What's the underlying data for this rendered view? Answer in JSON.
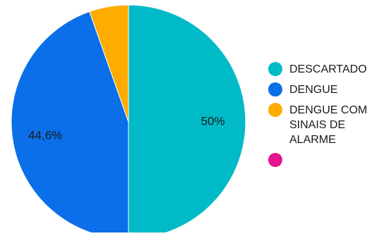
{
  "chart_data": {
    "type": "pie",
    "slices": [
      {
        "label": "DESCARTADO",
        "value": 50,
        "display": "50%",
        "color": "#00bac8"
      },
      {
        "label": "DENGUE",
        "value": 44.6,
        "display": "44,6%",
        "color": "#0a6fe8"
      },
      {
        "label": "DENGUE COM SINAIS DE ALARME",
        "value": 5.4,
        "display": "",
        "color": "#ffab00"
      },
      {
        "label": "",
        "value": 0,
        "display": "",
        "color": "#e6168c"
      }
    ],
    "legend_position": "right"
  }
}
